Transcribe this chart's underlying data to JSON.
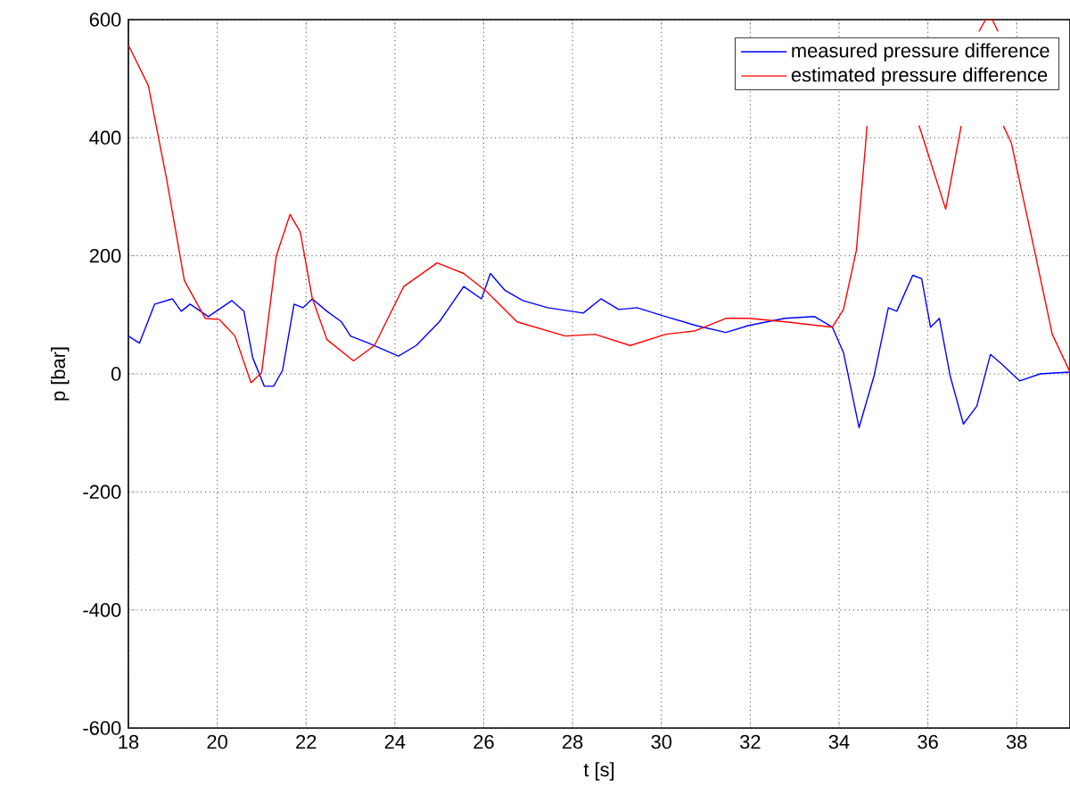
{
  "chart_data": {
    "type": "line",
    "xlabel": "t [s]",
    "ylabel": "p [bar]",
    "xlim": [
      18,
      39.2
    ],
    "ylim": [
      -600,
      600
    ],
    "xticks": [
      18,
      20,
      22,
      24,
      26,
      28,
      30,
      32,
      34,
      36,
      38
    ],
    "yticks": [
      -600,
      -400,
      -200,
      0,
      200,
      400,
      600
    ],
    "grid": true,
    "legend": "top right",
    "line_style": "solid",
    "series": [
      {
        "name": "measured pressure difference",
        "color": "#0000ff",
        "x": [
          18.0,
          18.25,
          18.59,
          18.99,
          19.19,
          19.39,
          19.8,
          20.33,
          20.6,
          20.8,
          21.06,
          21.27,
          21.47,
          21.73,
          21.93,
          22.14,
          22.47,
          22.8,
          23.0,
          23.41,
          24.08,
          24.48,
          25.0,
          25.55,
          25.95,
          26.15,
          26.47,
          26.88,
          27.44,
          28.24,
          28.64,
          29.04,
          29.45,
          30.1,
          30.77,
          31.45,
          31.97,
          32.78,
          33.45,
          33.85,
          34.1,
          34.45,
          34.79,
          35.11,
          35.3,
          35.66,
          35.86,
          36.06,
          36.26,
          36.5,
          36.8,
          37.1,
          37.41,
          37.64,
          38.07,
          38.53,
          39.2
        ],
        "values": [
          64,
          52,
          118,
          127,
          106,
          118,
          97,
          124,
          106,
          27,
          -21,
          -21,
          6,
          118,
          112,
          127,
          106,
          88,
          64,
          52,
          30,
          48,
          88,
          148,
          127,
          170,
          142,
          124,
          112,
          103,
          127,
          109,
          112,
          97,
          82,
          70,
          82,
          94,
          97,
          79,
          36,
          -91,
          -3,
          112,
          106,
          167,
          161,
          79,
          94,
          -3,
          -85,
          -55,
          33,
          18,
          -12,
          0,
          3
        ]
      },
      {
        "name": "estimated pressure difference",
        "color": "#ff0000",
        "x": [
          18.0,
          18.45,
          18.86,
          19.26,
          19.73,
          20.05,
          20.4,
          20.76,
          21.0,
          21.33,
          21.64,
          21.87,
          22.14,
          22.47,
          23.07,
          23.54,
          24.2,
          24.95,
          25.55,
          26.07,
          26.75,
          27.84,
          28.5,
          29.3,
          30.1,
          30.77,
          31.45,
          31.97,
          32.8,
          33.85,
          34.1,
          34.39,
          34.59,
          34.63,
          34.7,
          35.8,
          36.4,
          36.75,
          36.9,
          37.15,
          37.3,
          37.45,
          37.58,
          37.62,
          37.7,
          37.88,
          38.4,
          38.8,
          39.2
        ],
        "values": [
          557,
          488,
          330,
          158,
          94,
          92,
          64,
          -15,
          2,
          200,
          270,
          240,
          128,
          58,
          22,
          48,
          148,
          188,
          170,
          139,
          88,
          64,
          67,
          48,
          67,
          73,
          94,
          94,
          88,
          79,
          109,
          209,
          382,
          420,
          null,
          421,
          279,
          420,
          null,
          580,
          600,
          600,
          580,
          null,
          420,
          391,
          209,
          67,
          3
        ]
      }
    ]
  }
}
